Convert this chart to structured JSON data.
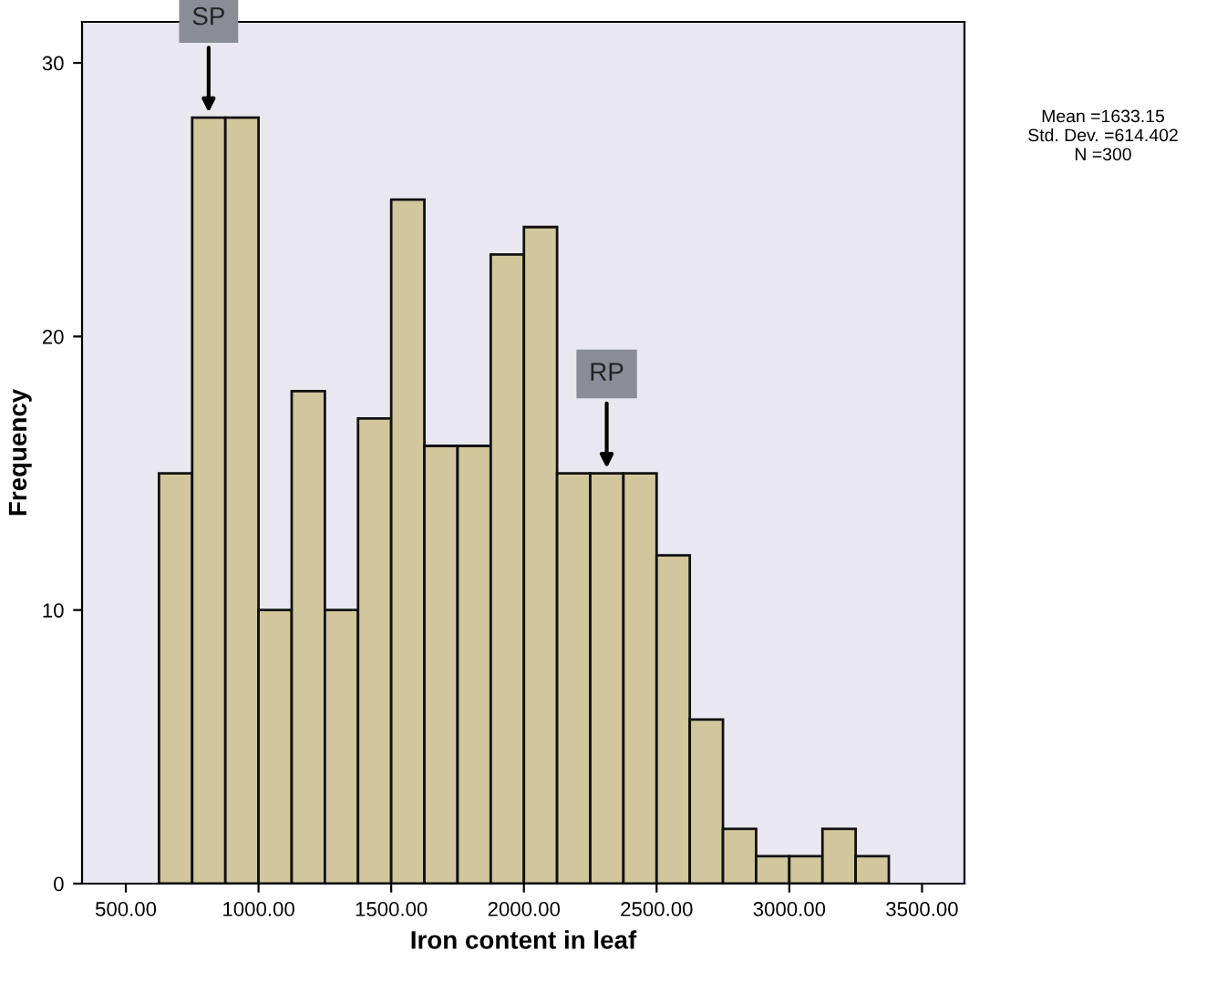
{
  "chart_data": {
    "type": "histogram",
    "xlabel": "Iron content in leaf",
    "ylabel": "Frequency",
    "bins": [
      625,
      750,
      875,
      1000,
      1125,
      1250,
      1375,
      1500,
      1625,
      1750,
      1875,
      2000,
      2125,
      2250,
      2375,
      2500,
      2625,
      2750,
      2875,
      3000,
      3125,
      3250,
      3375
    ],
    "values": [
      15,
      28,
      28,
      10,
      18,
      10,
      17,
      25,
      16,
      16,
      23,
      24,
      15,
      15,
      15,
      12,
      6,
      2,
      1,
      1,
      2,
      1
    ],
    "color": "#d2c79c",
    "xlim": [
      335,
      3660
    ],
    "ylim": [
      0,
      31.5
    ],
    "xticks": [
      {
        "value": 500,
        "label": "500.00"
      },
      {
        "value": 1000,
        "label": "1000.00"
      },
      {
        "value": 1500,
        "label": "1500.00"
      },
      {
        "value": 2000,
        "label": "2000.00"
      },
      {
        "value": 2500,
        "label": "2500.00"
      },
      {
        "value": 3000,
        "label": "3000.00"
      },
      {
        "value": 3500,
        "label": "3500.00"
      }
    ],
    "yticks": [
      0,
      10,
      20,
      30
    ],
    "grid": false,
    "annotations": [
      {
        "text": "SP",
        "x": 812,
        "y": 28
      },
      {
        "text": "RP",
        "x": 2312,
        "y": 15
      },
      "Mean =1633.15\nStd. Dev. =614.402\nN =300"
    ]
  }
}
